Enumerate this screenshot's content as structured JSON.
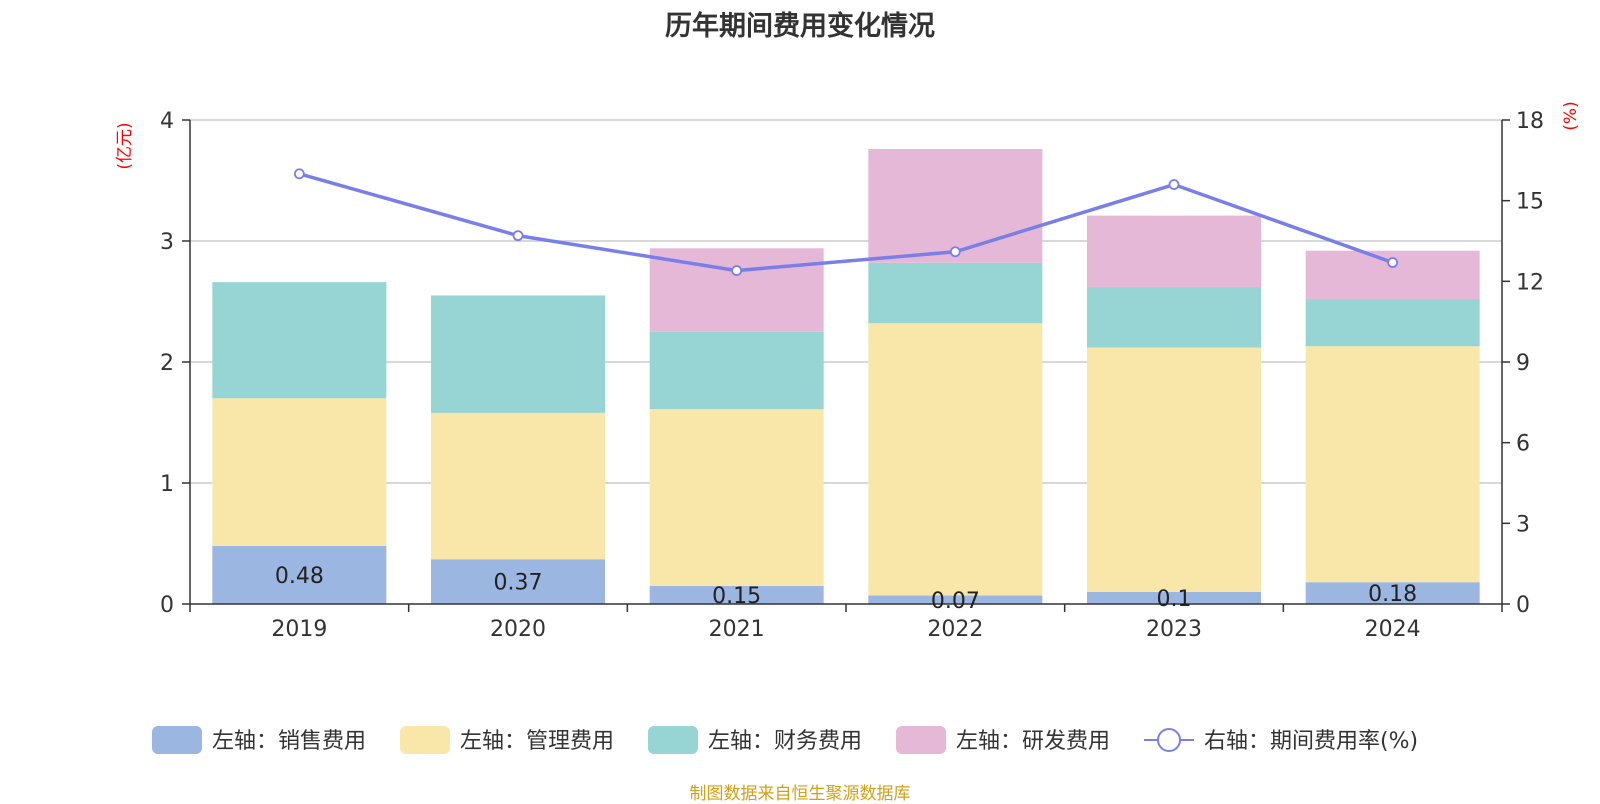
{
  "chart_data": {
    "type": "bar",
    "title": "历年期间费用变化情况",
    "categories": [
      "2019",
      "2020",
      "2021",
      "2022",
      "2023",
      "2024"
    ],
    "left_axis": {
      "unit": "(亿元)",
      "ylim": [
        0,
        4
      ],
      "ticks": [
        "0",
        "1",
        "2",
        "3",
        "4"
      ]
    },
    "right_axis": {
      "unit": "(%)",
      "ylim": [
        0,
        18
      ],
      "ticks": [
        "0",
        "3",
        "6",
        "9",
        "12",
        "15",
        "18"
      ]
    },
    "grid": true,
    "legend_position": "bottom",
    "series": [
      {
        "name": "左轴：销售费用",
        "kind": "bar",
        "axis": "left",
        "color": "#9bb6e0",
        "values": [
          0.48,
          0.37,
          0.15,
          0.07,
          0.1,
          0.18
        ],
        "labels": [
          "0.48",
          "0.37",
          "0.15",
          "0.07",
          "0.1",
          "0.18"
        ]
      },
      {
        "name": "左轴：管理费用",
        "kind": "bar",
        "axis": "left",
        "color": "#f8e7a8",
        "values": [
          1.22,
          1.21,
          1.46,
          2.25,
          2.02,
          1.95
        ]
      },
      {
        "name": "左轴：财务费用",
        "kind": "bar",
        "axis": "left",
        "color": "#97d4d4",
        "values": [
          0.96,
          0.97,
          0.64,
          0.5,
          0.5,
          0.39
        ]
      },
      {
        "name": "左轴：研发费用",
        "kind": "bar",
        "axis": "left",
        "color": "#e6b8d8",
        "values": [
          0,
          0,
          0.69,
          0.94,
          0.59,
          0.4
        ]
      },
      {
        "name": "右轴：期间费用率(%)",
        "kind": "line",
        "axis": "right",
        "color": "#7a7fe8",
        "values": [
          16.0,
          13.7,
          12.4,
          13.1,
          15.6,
          12.7
        ]
      }
    ],
    "source": "制图数据来自恒生聚源数据库"
  }
}
